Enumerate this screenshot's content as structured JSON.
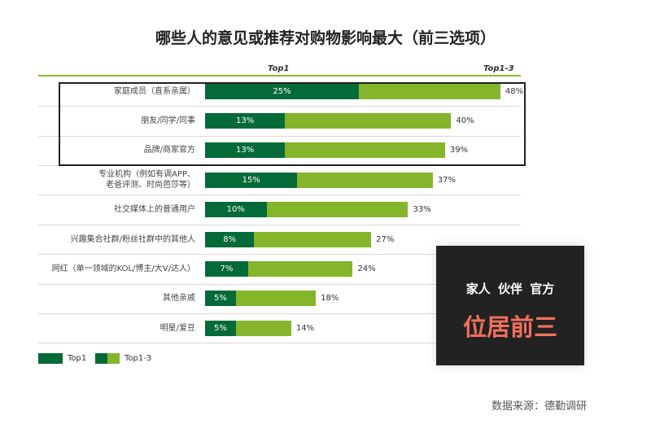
{
  "chart_data": {
    "type": "bar",
    "title": "哪些人的意见或推荐对购物影响最大（前三选项）",
    "column_headers": [
      "Top1",
      "Top1-3"
    ],
    "categories": [
      "家庭成员（直系亲属）",
      "朋友/同学/同事",
      "品牌/商家官方",
      "专业机构（例如有调APP、老爸评测、时尚芭莎等）",
      "社交媒体上的普通用户",
      "兴趣集合社群/粉丝社群中的其他人",
      "网红（单一领域的KOL/博主/大V/达人）",
      "其他亲戚",
      "明星/爱豆"
    ],
    "category_lines": [
      [
        "家庭成员（直系亲属）"
      ],
      [
        "朋友/同学/同事"
      ],
      [
        "品牌/商家官方"
      ],
      [
        "专业机构（例如有调APP、",
        "老爸评测、时尚芭莎等）"
      ],
      [
        "社交媒体上的普通用户"
      ],
      [
        "兴趣集合社群/粉丝社群中的其他人"
      ],
      [
        "网红（单一领域的KOL/博主/大V/达人）"
      ],
      [
        "其他亲戚"
      ],
      [
        "明星/爱豆"
      ]
    ],
    "series": [
      {
        "name": "Top1",
        "values": [
          25,
          13,
          13,
          15,
          10,
          8,
          7,
          5,
          5
        ],
        "color": "#046a38"
      },
      {
        "name": "Top1-3",
        "values": [
          48,
          40,
          39,
          37,
          33,
          27,
          24,
          18,
          14
        ],
        "color": "#84b52a"
      }
    ],
    "value_format": "{v}%",
    "highlighted_categories": [
      0,
      1,
      2
    ],
    "legend": {
      "placement": "bottom-left",
      "items": [
        "Top1",
        "Top1-3"
      ]
    },
    "grid": false
  },
  "callout": {
    "line1": "家人  伙伴  官方",
    "line2": "位居前三"
  },
  "source": "数据来源：德勤调研"
}
